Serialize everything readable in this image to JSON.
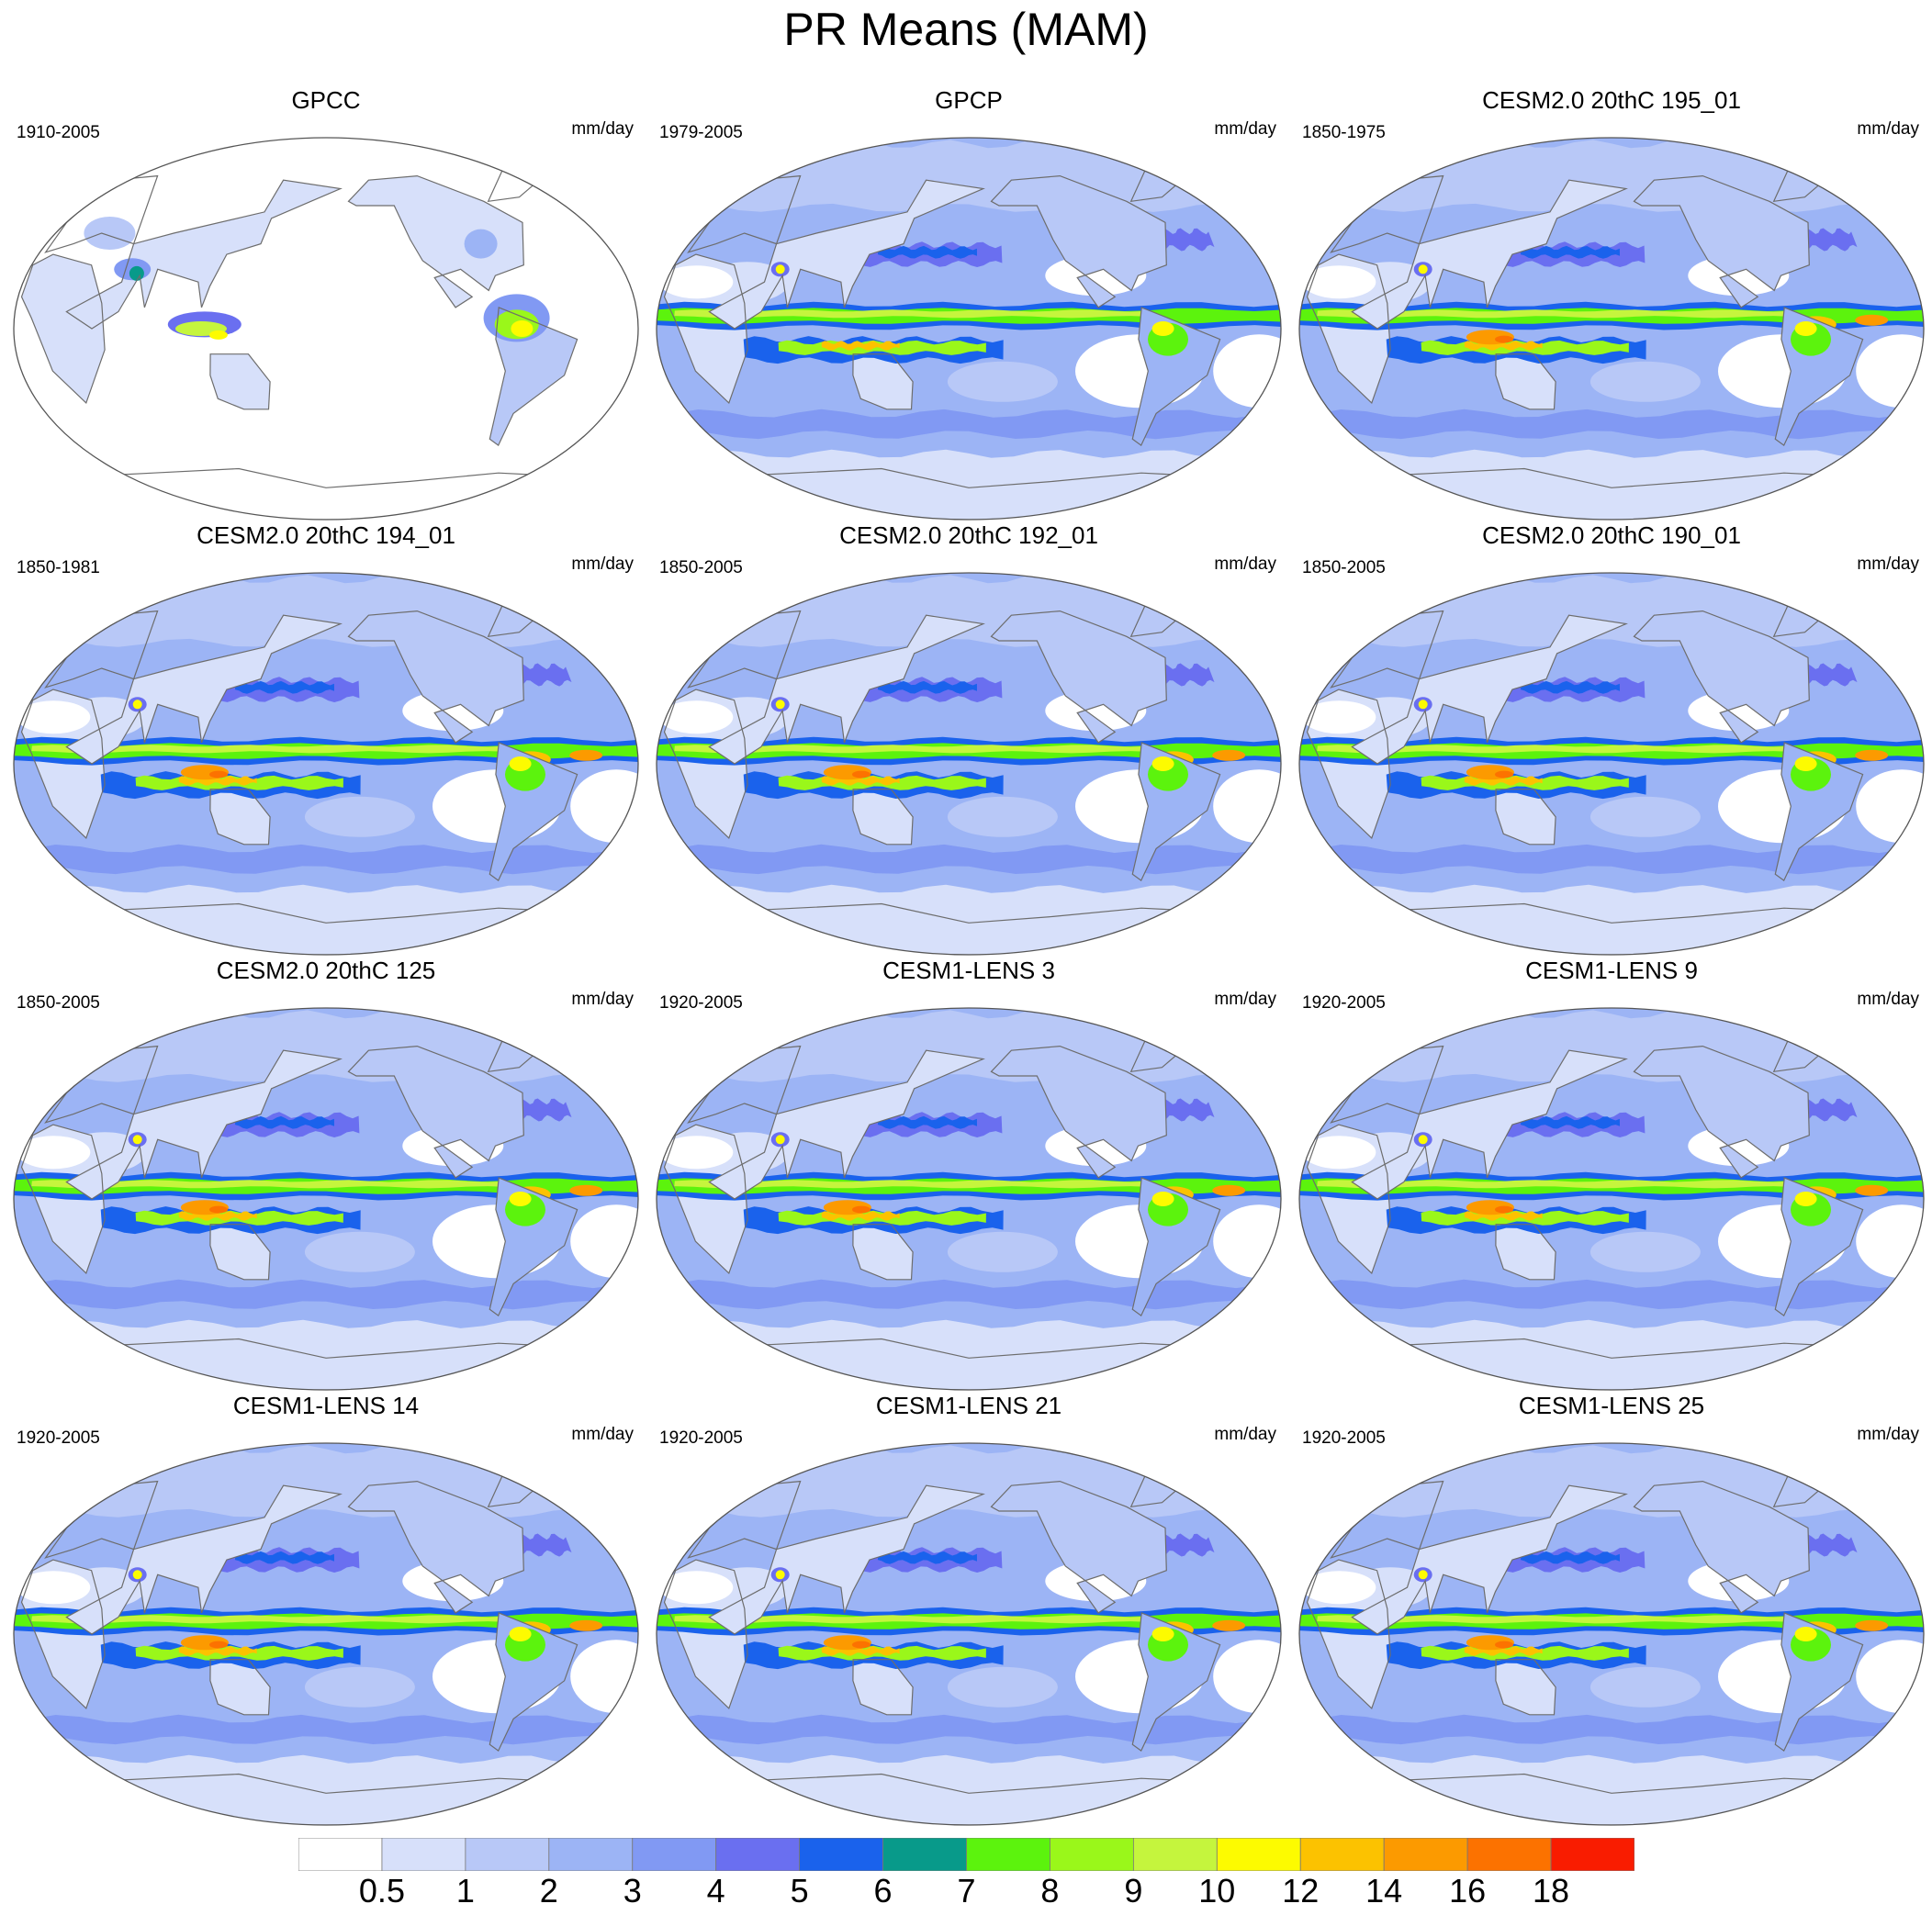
{
  "title": "PR Means (MAM)",
  "panels": [
    {
      "title": "GPCC",
      "period": "1910-2005",
      "units": "mm/day",
      "kind": "land"
    },
    {
      "title": "GPCP",
      "period": "1979-2005",
      "units": "mm/day",
      "kind": "obs"
    },
    {
      "title": "CESM2.0 20thC 195_01",
      "period": "1850-1975",
      "units": "mm/day",
      "kind": "model"
    },
    {
      "title": "CESM2.0 20thC 194_01",
      "period": "1850-1981",
      "units": "mm/day",
      "kind": "model"
    },
    {
      "title": "CESM2.0 20thC 192_01",
      "period": "1850-2005",
      "units": "mm/day",
      "kind": "model"
    },
    {
      "title": "CESM2.0 20thC 190_01",
      "period": "1850-2005",
      "units": "mm/day",
      "kind": "model"
    },
    {
      "title": "CESM2.0 20thC 125",
      "period": "1850-2005",
      "units": "mm/day",
      "kind": "model"
    },
    {
      "title": "CESM1-LENS 3",
      "period": "1920-2005",
      "units": "mm/day",
      "kind": "lens"
    },
    {
      "title": "CESM1-LENS 9",
      "period": "1920-2005",
      "units": "mm/day",
      "kind": "lens"
    },
    {
      "title": "CESM1-LENS 14",
      "period": "1920-2005",
      "units": "mm/day",
      "kind": "lens"
    },
    {
      "title": "CESM1-LENS 21",
      "period": "1920-2005",
      "units": "mm/day",
      "kind": "lens"
    },
    {
      "title": "CESM1-LENS 25",
      "period": "1920-2005",
      "units": "mm/day",
      "kind": "lens"
    }
  ],
  "colorbar": {
    "labels": [
      "0.5",
      "1",
      "2",
      "3",
      "4",
      "5",
      "6",
      "7",
      "8",
      "9",
      "10",
      "12",
      "14",
      "16",
      "18"
    ],
    "colors": [
      "#ffffff",
      "#d7e0fa",
      "#b8c8f7",
      "#9cb4f5",
      "#8199f3",
      "#6a6ff0",
      "#1a62ec",
      "#089a8a",
      "#5cf30d",
      "#9af71a",
      "#c5f53d",
      "#fdfb00",
      "#fcc200",
      "#fc9a00",
      "#fc7200",
      "#f91c00"
    ]
  }
}
